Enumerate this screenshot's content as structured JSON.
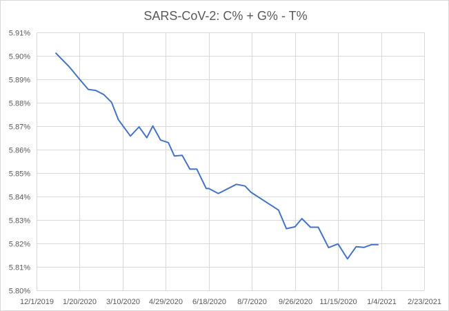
{
  "chart_data": {
    "type": "line",
    "title": "SARS-CoV-2: C% + G% - T%",
    "xlabel": "",
    "ylabel": "",
    "x_axis_type": "date",
    "xlim": [
      "2019-12-01",
      "2021-02-23"
    ],
    "x_ticks": [
      "2019-12-01",
      "2020-01-20",
      "2020-03-10",
      "2020-04-29",
      "2020-06-18",
      "2020-08-07",
      "2020-09-26",
      "2020-11-15",
      "2021-01-04",
      "2021-02-23"
    ],
    "x_tick_labels": [
      "12/1/2019",
      "1/20/2020",
      "3/10/2020",
      "4/29/2020",
      "6/18/2020",
      "8/7/2020",
      "9/26/2020",
      "11/15/2020",
      "1/4/2021",
      "2/23/2021"
    ],
    "ylim": [
      5.8,
      5.91
    ],
    "y_ticks": [
      5.8,
      5.81,
      5.82,
      5.83,
      5.84,
      5.85,
      5.86,
      5.87,
      5.88,
      5.89,
      5.9,
      5.91
    ],
    "y_tick_labels": [
      "5.80%",
      "5.81%",
      "5.82%",
      "5.83%",
      "5.84%",
      "5.85%",
      "5.86%",
      "5.87%",
      "5.88%",
      "5.89%",
      "5.90%",
      "5.91%"
    ],
    "grid": true,
    "legend": "none",
    "line_color": "#4472c4",
    "series": [
      {
        "x": [
          "2019-12-23",
          "2020-01-08",
          "2020-01-20",
          "2020-01-30",
          "2020-02-08",
          "2020-02-17",
          "2020-02-26",
          "2020-03-05",
          "2020-03-19",
          "2020-03-29",
          "2020-04-07",
          "2020-04-14",
          "2020-04-23",
          "2020-05-02",
          "2020-05-09",
          "2020-05-18",
          "2020-05-27",
          "2020-06-04",
          "2020-06-15",
          "2020-06-18",
          "2020-06-29",
          "2020-07-20",
          "2020-07-30",
          "2020-08-06",
          "2020-09-07",
          "2020-09-16",
          "2020-09-26",
          "2020-10-04",
          "2020-10-14",
          "2020-10-23",
          "2020-11-04",
          "2020-11-15",
          "2020-11-26",
          "2020-12-06",
          "2020-12-15",
          "2020-12-24",
          "2021-01-01"
        ],
        "values": [
          5.9013,
          5.8953,
          5.89,
          5.8857,
          5.8852,
          5.8835,
          5.8802,
          5.8728,
          5.8658,
          5.8697,
          5.8651,
          5.8701,
          5.8641,
          5.863,
          5.8573,
          5.8576,
          5.8517,
          5.8517,
          5.8434,
          5.8434,
          5.8413,
          5.8452,
          5.8445,
          5.8418,
          5.8342,
          5.8263,
          5.8271,
          5.8306,
          5.8269,
          5.8269,
          5.8182,
          5.8198,
          5.8134,
          5.8186,
          5.8183,
          5.8195,
          5.8195
        ]
      }
    ]
  }
}
